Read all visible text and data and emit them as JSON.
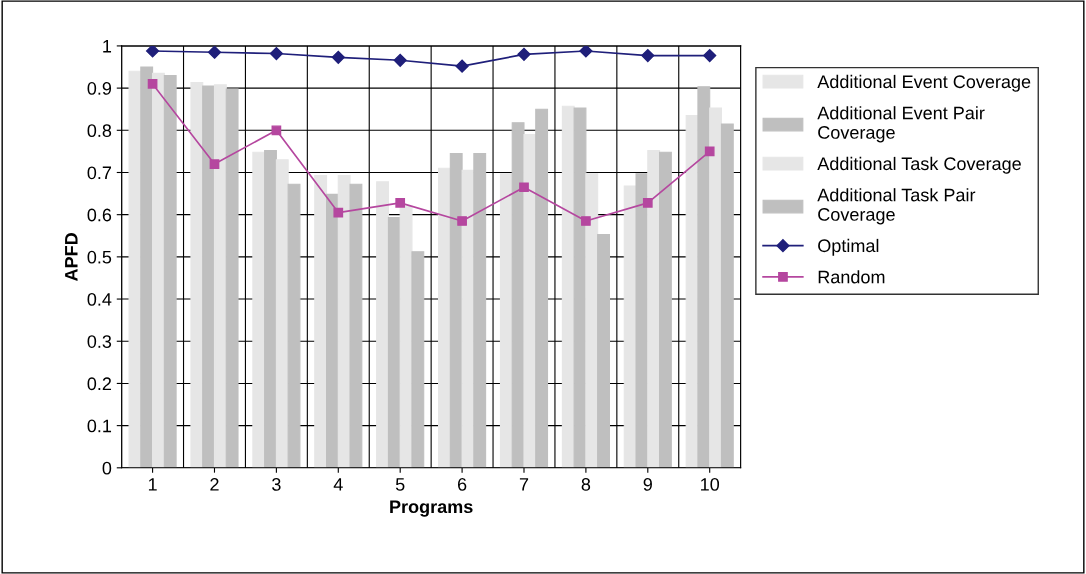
{
  "chart_data": {
    "type": "bar",
    "xlabel": "Programs",
    "ylabel": "APFD",
    "categories": [
      "1",
      "2",
      "3",
      "4",
      "5",
      "6",
      "7",
      "8",
      "9",
      "10"
    ],
    "ylim": [
      0,
      1
    ],
    "yticks": [
      0,
      0.1,
      0.2,
      0.3,
      0.4,
      0.5,
      0.6,
      0.7,
      0.8,
      0.9,
      1
    ],
    "grid": true,
    "legend": "right",
    "series": [
      {
        "name": "Additional Event Coverage",
        "color": "#e6e6e6",
        "values": [
          0.94,
          0.913,
          0.748,
          0.693,
          0.678,
          0.71,
          0.697,
          0.857,
          0.668,
          0.835
        ]
      },
      {
        "name": "Additional Event Pair Coverage",
        "color": "#bfbfbf",
        "values": [
          0.95,
          0.905,
          0.752,
          0.648,
          0.593,
          0.745,
          0.818,
          0.853,
          0.697,
          0.903
        ]
      },
      {
        "name": "Additional Task Coverage",
        "color": "#e6e6e6",
        "values": [
          0.935,
          0.908,
          0.73,
          0.693,
          0.62,
          0.705,
          0.79,
          0.697,
          0.752,
          0.853
        ]
      },
      {
        "name": "Additional Task Pair Coverage",
        "color": "#bfbfbf",
        "values": [
          0.93,
          0.898,
          0.672,
          0.672,
          0.512,
          0.745,
          0.85,
          0.553,
          0.748,
          0.815
        ]
      },
      {
        "name": "Optimal",
        "type": "line",
        "color": "#1f1f7a",
        "marker": "diamond",
        "values": [
          0.988,
          0.985,
          0.982,
          0.973,
          0.966,
          0.952,
          0.98,
          0.988,
          0.977,
          0.977
        ]
      },
      {
        "name": "Random",
        "type": "line",
        "color": "#b5479f",
        "marker": "square",
        "values": [
          0.91,
          0.72,
          0.8,
          0.605,
          0.628,
          0.585,
          0.665,
          0.585,
          0.628,
          0.75
        ]
      }
    ]
  }
}
